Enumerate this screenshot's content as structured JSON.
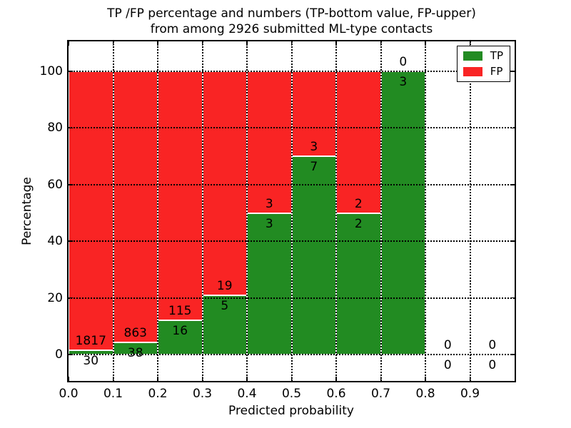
{
  "chart_data": {
    "type": "bar",
    "stacked": true,
    "normalized": "each non-empty bin scaled to 100%",
    "title_lines": [
      "TP /FP percentage and numbers (TP-bottom value, FP-upper)",
      "from among 2926 submitted ML-type contacts"
    ],
    "xlabel": "Predicted probability",
    "ylabel": "Percentage",
    "total_submitted": 2926,
    "bin_edges": [
      0.0,
      0.1,
      0.2,
      0.3,
      0.4,
      0.5,
      0.6,
      0.7,
      0.8,
      0.9,
      1.0
    ],
    "xtick_labels": [
      "0.0",
      "0.1",
      "0.2",
      "0.3",
      "0.4",
      "0.5",
      "0.6",
      "0.7",
      "0.8",
      "0.9"
    ],
    "ytick_values": [
      0,
      20,
      40,
      60,
      80,
      100
    ],
    "xlim": [
      0.0,
      1.0
    ],
    "ylim": [
      -10,
      111
    ],
    "grid": "dotted, both axes, drawn above bars",
    "legend_position": "upper right",
    "series": [
      {
        "name": "TP",
        "color": "#228b22",
        "values": [
          30,
          38,
          16,
          5,
          3,
          7,
          2,
          3,
          0,
          0
        ]
      },
      {
        "name": "FP",
        "color": "#f92424",
        "values": [
          1817,
          863,
          115,
          19,
          3,
          3,
          2,
          0,
          0,
          0
        ]
      }
    ],
    "tp_percent_by_bin": [
      1.6,
      4.2,
      12.2,
      20.8,
      50.0,
      70.0,
      50.0,
      100.0,
      0.0,
      0.0
    ]
  }
}
